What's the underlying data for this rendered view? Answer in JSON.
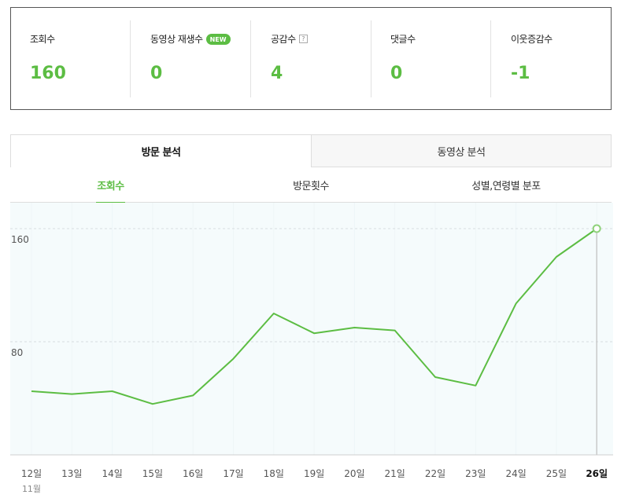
{
  "stats": [
    {
      "label": "조회수",
      "value": "160"
    },
    {
      "label": "동영상 재생수",
      "value": "0",
      "badge": "NEW"
    },
    {
      "label": "공감수",
      "value": "4",
      "help": "?"
    },
    {
      "label": "댓글수",
      "value": "0"
    },
    {
      "label": "이웃증감수",
      "value": "-1"
    }
  ],
  "main_tabs": [
    "방문 분석",
    "동영상 분석"
  ],
  "sub_tabs": [
    "조회수",
    "방문횟수",
    "성별,연령별 분포"
  ],
  "colors": {
    "accent": "#5cbd43",
    "chart_bg": "#f5fbfc"
  },
  "chart_data": {
    "type": "line",
    "x": [
      "12일",
      "13일",
      "14일",
      "15일",
      "16일",
      "17일",
      "18일",
      "19일",
      "20일",
      "21일",
      "22일",
      "23일",
      "24일",
      "25일",
      "26일"
    ],
    "month_label": "11월",
    "y_ticks": [
      "80",
      "160"
    ],
    "ylim": [
      0,
      160
    ],
    "grid": true,
    "highlight_last": true,
    "series": [
      {
        "values": [
          45,
          43,
          45,
          36,
          42,
          68,
          100,
          86,
          90,
          88,
          55,
          49,
          107,
          140,
          160
        ]
      }
    ]
  }
}
